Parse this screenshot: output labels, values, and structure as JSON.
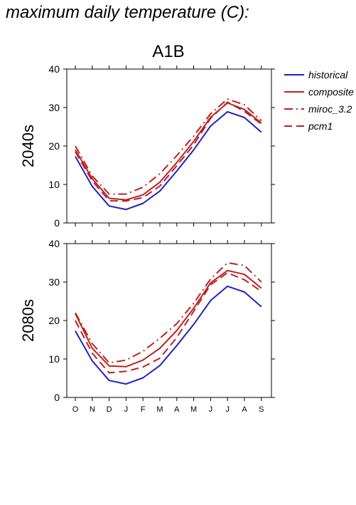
{
  "title": "maximum daily temperature (C):",
  "chart_data": {
    "type": "line",
    "scenario": "A1B",
    "months": [
      "O",
      "N",
      "D",
      "J",
      "F",
      "M",
      "A",
      "M",
      "J",
      "J",
      "A",
      "S"
    ],
    "ylim": [
      0,
      40
    ],
    "yticks": [
      0,
      10,
      20,
      30,
      40
    ],
    "legend": {
      "placement": "right",
      "entries": [
        {
          "name": "historical",
          "color": "#2222bb",
          "dash": "solid"
        },
        {
          "name": "composite",
          "color": "#bb2222",
          "dash": "solid"
        },
        {
          "name": "miroc_3.2",
          "color": "#bb2222",
          "dash": "dashdot"
        },
        {
          "name": "pcm1",
          "color": "#bb2222",
          "dash": "dashed"
        }
      ]
    },
    "panels": [
      {
        "label": "2040s",
        "series": [
          {
            "name": "historical",
            "values": [
              17.3,
              9.5,
              4.4,
              3.5,
              5.1,
              8.3,
              13.5,
              19.0,
              25.2,
              28.9,
              27.4,
              23.6
            ]
          },
          {
            "name": "composite",
            "values": [
              19.0,
              11.5,
              6.4,
              6.0,
              7.3,
              10.6,
              15.7,
              21.2,
              27.5,
              31.2,
              29.5,
              26.0
            ]
          },
          {
            "name": "miroc_3.2",
            "values": [
              20.0,
              12.2,
              7.5,
              7.5,
              9.3,
              12.8,
              17.5,
              22.6,
              28.4,
              32.2,
              30.7,
              26.6
            ]
          },
          {
            "name": "pcm1",
            "values": [
              18.5,
              10.9,
              5.8,
              5.7,
              6.6,
              9.6,
              14.9,
              20.3,
              27.2,
              31.4,
              29.0,
              25.7
            ]
          }
        ]
      },
      {
        "label": "2080s",
        "series": [
          {
            "name": "historical",
            "values": [
              17.3,
              9.5,
              4.4,
              3.5,
              5.1,
              8.3,
              13.5,
              19.0,
              25.2,
              28.9,
              27.4,
              23.6
            ]
          },
          {
            "name": "composite",
            "values": [
              21.8,
              12.8,
              8.2,
              8.0,
              9.7,
              12.8,
              17.4,
              23.2,
              29.8,
              33.0,
              32.0,
              28.4
            ]
          },
          {
            "name": "miroc_3.2",
            "values": [
              22.0,
              14.0,
              9.0,
              9.7,
              12.0,
              15.4,
              19.2,
              24.5,
              30.8,
              35.0,
              34.3,
              30.0
            ]
          },
          {
            "name": "pcm1",
            "values": [
              20.0,
              11.5,
              6.4,
              6.8,
              7.9,
              10.2,
              15.6,
              22.4,
              29.3,
              32.4,
              30.6,
              27.6
            ]
          }
        ]
      }
    ]
  }
}
